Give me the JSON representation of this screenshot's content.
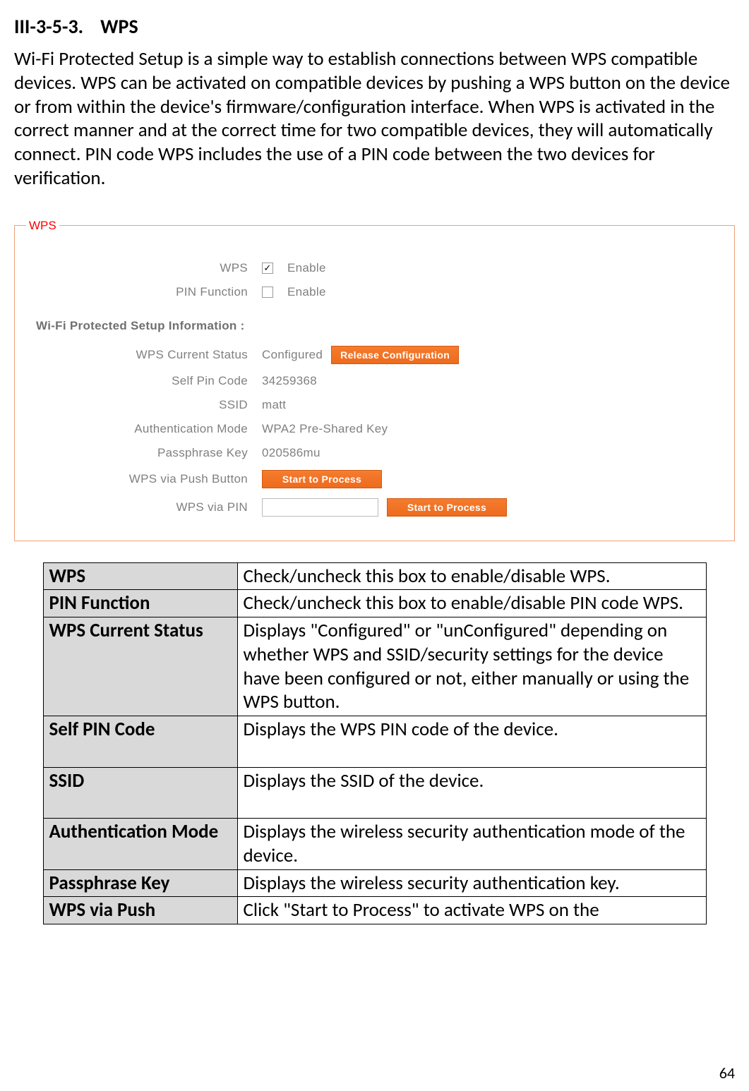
{
  "heading": {
    "num": "III-3-5-3.",
    "title": "WPS"
  },
  "paragraph": "Wi-Fi Protected Setup is a simple way to establish connections between WPS compatible devices. WPS can be activated on compatible devices by pushing a WPS button on the device or from within the device's firmware/configuration interface. When WPS is activated in the correct manner and at the correct time for two compatible devices, they will automatically connect. PIN code WPS includes the use of a PIN code between the two devices for verification.",
  "fieldset": {
    "legend": "WPS",
    "rows": {
      "wps": {
        "label": "WPS",
        "value": "Enable",
        "checked": true
      },
      "pin_function": {
        "label": "PIN Function",
        "value": "Enable",
        "checked": false
      }
    },
    "sub_heading": "Wi-Fi Protected Setup Information   :",
    "info": {
      "current_status": {
        "label": "WPS Current Status",
        "value": "Configured",
        "button": "Release Configuration"
      },
      "self_pin": {
        "label": "Self Pin Code",
        "value": "34259368"
      },
      "ssid": {
        "label": "SSID",
        "value": "matt"
      },
      "auth_mode": {
        "label": "Authentication Mode",
        "value": "WPA2 Pre-Shared Key"
      },
      "passphrase": {
        "label": "Passphrase Key",
        "value": "020586mu"
      },
      "push_button": {
        "label": "WPS via Push Button",
        "button": "Start to Process"
      },
      "via_pin": {
        "label": "WPS via PIN",
        "input": "",
        "button": "Start to Process"
      }
    }
  },
  "table": {
    "rows": [
      {
        "term": "WPS",
        "desc": "Check/uncheck this box to enable/disable WPS."
      },
      {
        "term": "PIN Function",
        "desc": "Check/uncheck this box to enable/disable PIN code WPS."
      },
      {
        "term": "WPS Current Status",
        "desc": "Displays \"Configured\" or \"unConfigured\" depending on whether WPS and SSID/security settings for the device have been configured or not, either manually or using the WPS button."
      },
      {
        "term": "Self PIN Code",
        "desc": "Displays the WPS PIN code of the device."
      },
      {
        "term": "SSID",
        "desc": "Displays the SSID of the device."
      },
      {
        "term": "Authentication Mode",
        "desc": "Displays the wireless security authentication mode of the device."
      },
      {
        "term": "Passphrase Key",
        "desc": "Displays the wireless security authentication key."
      },
      {
        "term": "WPS via Push",
        "desc": "Click \"Start to Process\" to activate WPS on the"
      }
    ]
  },
  "page_number": "64"
}
